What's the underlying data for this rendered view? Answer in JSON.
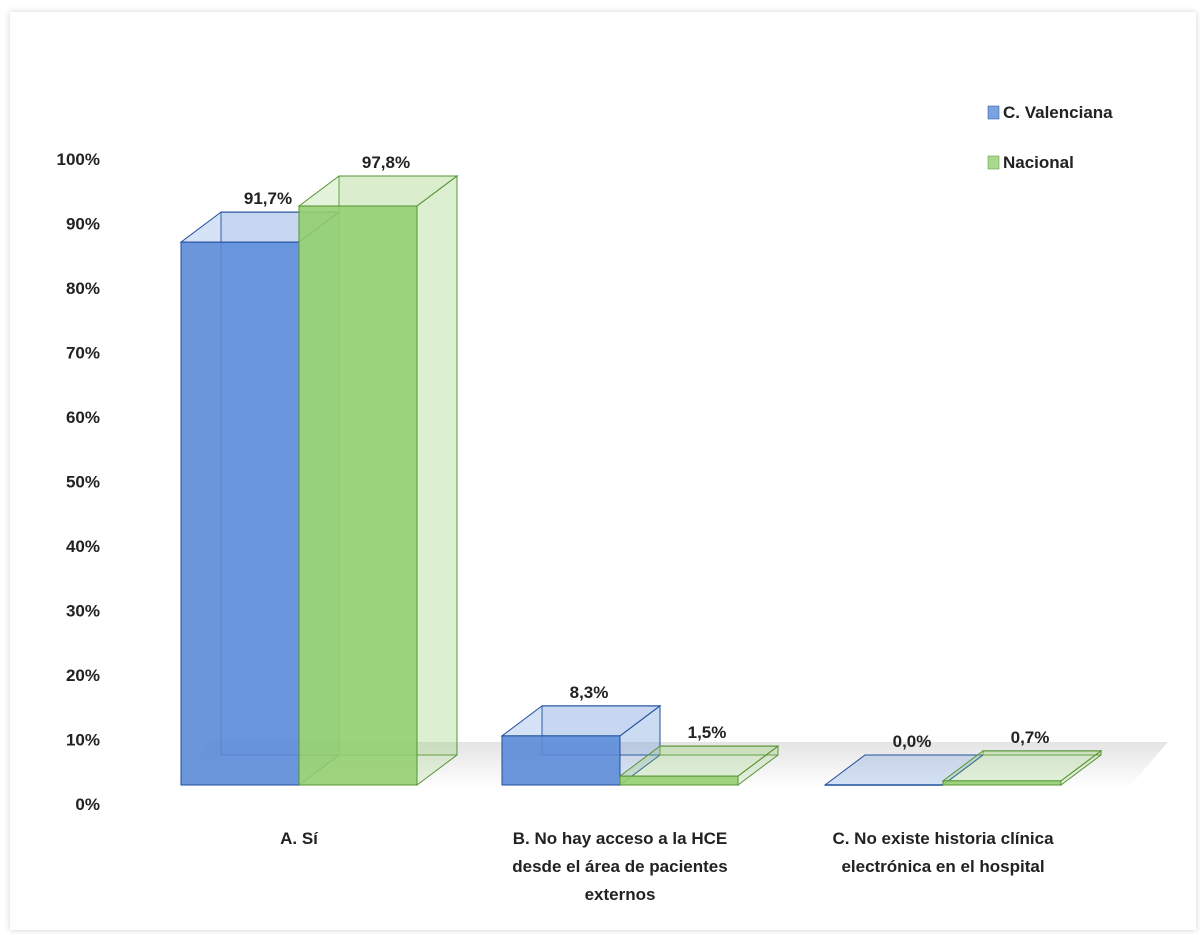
{
  "chart_data": {
    "type": "bar",
    "title": "",
    "xlabel": "",
    "ylabel": "",
    "ylim": [
      0,
      100
    ],
    "yticks": [
      "0%",
      "10%",
      "20%",
      "30%",
      "40%",
      "50%",
      "60%",
      "70%",
      "80%",
      "90%",
      "100%"
    ],
    "categories": [
      [
        "A. Sí"
      ],
      [
        "B. No hay acceso a la HCE",
        "desde el área de pacientes",
        "externos"
      ],
      [
        "C. No existe historia clínica",
        "electrónica en el hospital"
      ]
    ],
    "series": [
      {
        "name": "C. Valenciana",
        "values": [
          91.7,
          8.3,
          0.0
        ],
        "labels": [
          "91,7%",
          "8,3%",
          "0,0%"
        ],
        "color": "#5b8bd8"
      },
      {
        "name": "Nacional",
        "values": [
          97.8,
          1.5,
          0.7
        ],
        "labels": [
          "97,8%",
          "1,5%",
          "0,7%"
        ],
        "color": "#92cf6f"
      }
    ],
    "legend": "top-right",
    "grid": false,
    "style": "3d-column"
  }
}
